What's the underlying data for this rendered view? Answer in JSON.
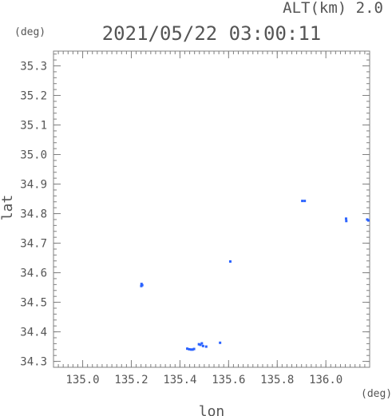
{
  "header": {
    "alt_label": "ALT(km) 2.0",
    "timestamp": "2021/05/22 03:00:11",
    "y_unit": "(deg)",
    "x_unit": "(deg)"
  },
  "chart_data": {
    "type": "scatter",
    "title": "2021/05/22 03:00:11",
    "xlabel": "lon",
    "ylabel": "lat",
    "xlim": [
      134.88,
      136.18
    ],
    "ylim": [
      34.28,
      35.35
    ],
    "xticks": [
      135.0,
      135.2,
      135.4,
      135.6,
      135.8,
      136.0
    ],
    "xtick_labels": [
      "135.0",
      "135.2",
      "135.4",
      "135.6",
      "135.8",
      "136.0"
    ],
    "yticks": [
      34.3,
      34.4,
      34.5,
      34.6,
      34.7,
      34.8,
      34.9,
      35.0,
      35.1,
      35.2,
      35.3
    ],
    "ytick_labels": [
      "34.3",
      "34.4",
      "34.5",
      "34.6",
      "34.7",
      "34.8",
      "34.9",
      "35.0",
      "35.1",
      "35.2",
      "35.3"
    ],
    "minor_xtick_step": 0.02,
    "minor_ytick_step": 0.02,
    "grid": false,
    "point_color": "#2a62ff",
    "points": [
      {
        "x": 135.242,
        "y": 34.562
      },
      {
        "x": 135.245,
        "y": 34.558
      },
      {
        "x": 135.241,
        "y": 34.555
      },
      {
        "x": 135.43,
        "y": 34.343
      },
      {
        "x": 135.438,
        "y": 34.341
      },
      {
        "x": 135.446,
        "y": 34.34
      },
      {
        "x": 135.452,
        "y": 34.34
      },
      {
        "x": 135.458,
        "y": 34.342
      },
      {
        "x": 135.478,
        "y": 34.358
      },
      {
        "x": 135.484,
        "y": 34.356
      },
      {
        "x": 135.49,
        "y": 34.361
      },
      {
        "x": 135.495,
        "y": 34.352
      },
      {
        "x": 135.508,
        "y": 34.35
      },
      {
        "x": 135.565,
        "y": 34.363
      },
      {
        "x": 135.607,
        "y": 34.638
      },
      {
        "x": 135.903,
        "y": 34.843
      },
      {
        "x": 135.913,
        "y": 34.843
      },
      {
        "x": 136.083,
        "y": 34.783
      },
      {
        "x": 136.084,
        "y": 34.775
      },
      {
        "x": 136.17,
        "y": 34.78
      },
      {
        "x": 136.175,
        "y": 34.777
      }
    ]
  }
}
